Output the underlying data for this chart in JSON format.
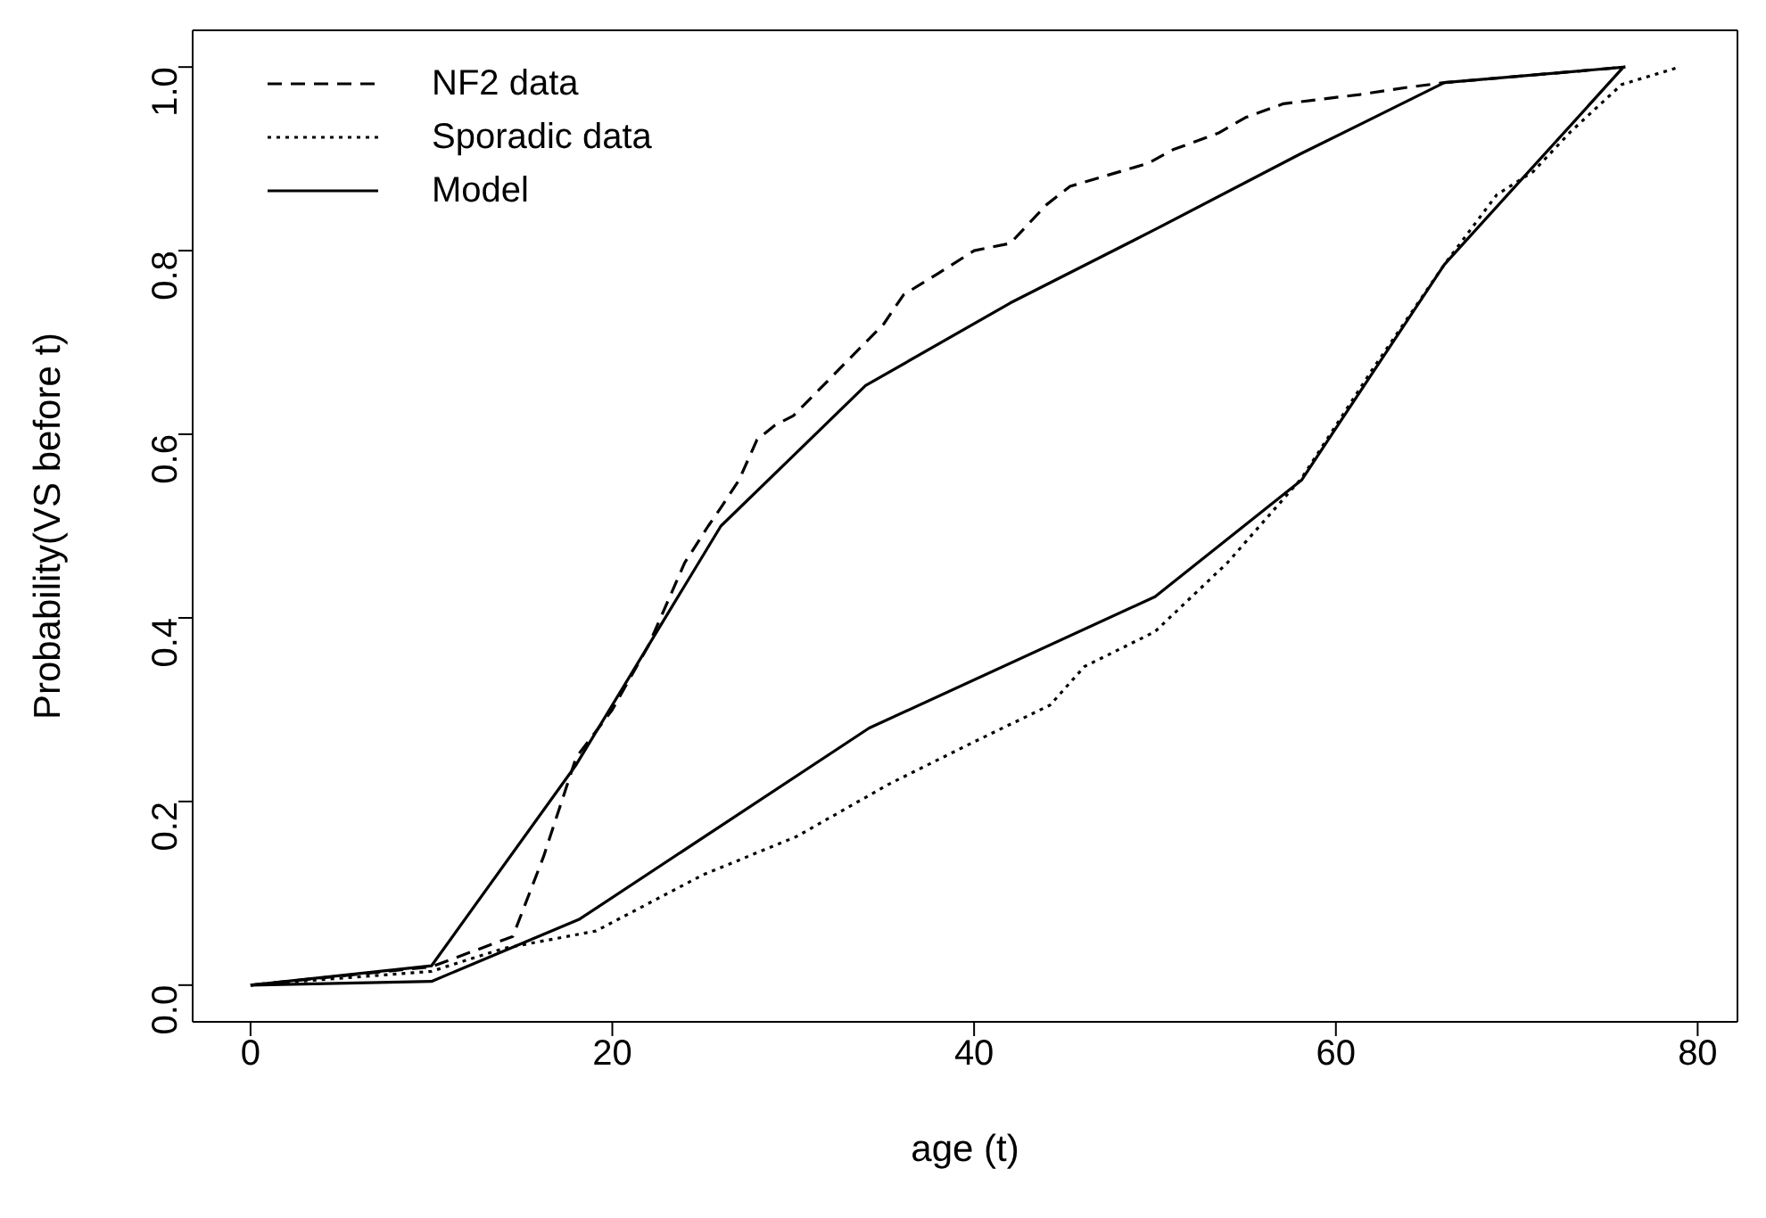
{
  "chart_data": {
    "type": "line",
    "xlabel": "age (t)",
    "ylabel": "Probability(VS before t)",
    "xlim": [
      -3.2,
      82.2
    ],
    "ylim": [
      -0.04,
      1.04
    ],
    "xticks": [
      0,
      20,
      40,
      60,
      80
    ],
    "yticks": [
      {
        "value": 0,
        "label": "0.0"
      },
      {
        "value": 0.2,
        "label": "0.2"
      },
      {
        "value": 0.4,
        "label": "0.4"
      },
      {
        "value": 0.6,
        "label": "0.6"
      },
      {
        "value": 0.8,
        "label": "0.8"
      },
      {
        "value": 1,
        "label": "1.0"
      }
    ],
    "legend": "top left",
    "marker": "none",
    "series": [
      {
        "name": "NF2 data",
        "color": "#000000",
        "line_style": "dashed",
        "x": [
          0,
          10,
          14.5,
          16.2,
          18,
          20,
          22,
          24,
          25.3,
          26,
          27,
          28,
          29,
          30,
          32,
          34,
          35,
          36.1,
          38,
          40,
          42,
          44,
          45.3,
          47,
          49.6,
          51,
          53.5,
          55,
          57.1,
          61.3,
          64,
          66,
          76
        ],
        "values": [
          0,
          0.02,
          0.053,
          0.14,
          0.248,
          0.3,
          0.37,
          0.46,
          0.5,
          0.52,
          0.55,
          0.594,
          0.61,
          0.62,
          0.66,
          0.7,
          0.72,
          0.752,
          0.775,
          0.8,
          0.808,
          0.85,
          0.87,
          0.88,
          0.895,
          0.91,
          0.928,
          0.945,
          0.96,
          0.97,
          0.978,
          0.983,
          1
        ]
      },
      {
        "name": "Sporadic data",
        "color": "#000000",
        "line_style": "dotted",
        "x": [
          0,
          10,
          14,
          19.1,
          25,
          30.2,
          35.3,
          40,
          44.2,
          46.1,
          50,
          54,
          58.1,
          62,
          66,
          68.9,
          70.9,
          73,
          75.8,
          79
        ],
        "values": [
          0,
          0.015,
          0.04,
          0.059,
          0.12,
          0.162,
          0.219,
          0.265,
          0.305,
          0.347,
          0.385,
          0.46,
          0.552,
          0.67,
          0.785,
          0.861,
          0.886,
          0.93,
          0.981,
          1
        ]
      },
      {
        "name": "Model",
        "color": "#000000",
        "line_style": "solid",
        "x": [
          0,
          10,
          18,
          26,
          34,
          42,
          50,
          58,
          66,
          76,
          null,
          0,
          10,
          18.2,
          34.2,
          50,
          58.1,
          66,
          75.9
        ],
        "values": [
          0,
          0.021,
          0.24,
          0.5,
          0.653,
          0.743,
          0.823,
          0.905,
          0.983,
          1,
          null,
          0,
          0.004,
          0.072,
          0.28,
          0.423,
          0.55,
          0.785,
          1
        ]
      }
    ]
  }
}
